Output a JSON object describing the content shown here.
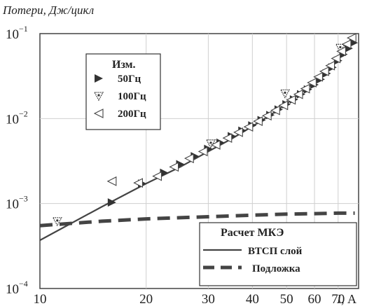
{
  "chart_data": {
    "type": "scatter",
    "title": "",
    "ylabel": "Потери, Дж/цикл",
    "xlabel_italic": "I",
    "xlabel_unit": ", А",
    "xscale": "log",
    "yscale": "log",
    "xlim": [
      10,
      80
    ],
    "ylim": [
      0.0001,
      0.1
    ],
    "grid": true,
    "x_ticks": [
      {
        "value": 10,
        "label": "10"
      },
      {
        "value": 20,
        "label": "20"
      },
      {
        "value": 30,
        "label": "30"
      },
      {
        "value": 40,
        "label": "40"
      },
      {
        "value": 50,
        "label": "50"
      },
      {
        "value": 60,
        "label": "60"
      },
      {
        "value": 70,
        "label": "70"
      }
    ],
    "y_ticks": [
      {
        "value": 0.0001,
        "base": "10",
        "exp": "−4"
      },
      {
        "value": 0.001,
        "base": "10",
        "exp": "−3"
      },
      {
        "value": 0.01,
        "base": "10",
        "exp": "−2"
      },
      {
        "value": 0.1,
        "base": "10",
        "exp": "−1"
      }
    ],
    "measured_legend": {
      "title": "Изм.",
      "placement": "upper-left"
    },
    "fem_legend": {
      "title": "Расчет МКЭ",
      "placement": "lower-right"
    },
    "series": [
      {
        "name": "50Гц",
        "marker": "triangle-right-filled",
        "points": [
          [
            16,
            0.00103
          ],
          [
            19.5,
            0.00172
          ],
          [
            22.5,
            0.0023
          ],
          [
            25,
            0.0029
          ],
          [
            27.5,
            0.0036
          ],
          [
            30,
            0.0044
          ],
          [
            32.5,
            0.0052
          ],
          [
            35,
            0.0062
          ],
          [
            37.5,
            0.0072
          ],
          [
            40,
            0.0083
          ],
          [
            42.5,
            0.0096
          ],
          [
            45,
            0.011
          ],
          [
            47.5,
            0.0128
          ],
          [
            50,
            0.0147
          ],
          [
            52.5,
            0.0168
          ],
          [
            55,
            0.0193
          ],
          [
            57.5,
            0.022
          ],
          [
            60,
            0.025
          ],
          [
            62.5,
            0.029
          ],
          [
            65,
            0.034
          ],
          [
            67.5,
            0.04
          ],
          [
            70,
            0.048
          ],
          [
            72.5,
            0.057
          ],
          [
            75,
            0.067
          ],
          [
            77.5,
            0.078
          ]
        ]
      },
      {
        "name": "100Гц",
        "marker": "triangle-down-dotted",
        "points": [
          [
            11.2,
            0.00062
          ],
          [
            30.5,
            0.0051
          ],
          [
            49.5,
            0.0198
          ],
          [
            71,
            0.068
          ]
        ]
      },
      {
        "name": "200Гц",
        "marker": "triangle-left-open",
        "points": [
          [
            16,
            0.00183
          ],
          [
            19,
            0.00175
          ],
          [
            21.5,
            0.0021
          ],
          [
            24,
            0.0027
          ],
          [
            26.5,
            0.0034
          ],
          [
            29,
            0.0041
          ],
          [
            31.5,
            0.0049
          ],
          [
            34,
            0.0059
          ],
          [
            36.5,
            0.0069
          ],
          [
            39,
            0.008
          ],
          [
            41.5,
            0.0093
          ],
          [
            44,
            0.0108
          ],
          [
            46.5,
            0.0125
          ],
          [
            49,
            0.0143
          ],
          [
            51.5,
            0.0166
          ],
          [
            54,
            0.0193
          ],
          [
            56.5,
            0.0225
          ],
          [
            59,
            0.0265
          ],
          [
            61.5,
            0.031
          ],
          [
            64,
            0.036
          ],
          [
            66.5,
            0.042
          ],
          [
            69,
            0.051
          ],
          [
            71.5,
            0.062
          ],
          [
            74,
            0.075
          ],
          [
            76.5,
            0.089
          ]
        ]
      },
      {
        "name": "ВТСП слой",
        "type": "line",
        "style": "solid",
        "points": [
          [
            10,
            0.00037
          ],
          [
            15,
            0.00092
          ],
          [
            20,
            0.00172
          ],
          [
            25,
            0.0027
          ],
          [
            30,
            0.0041
          ],
          [
            35,
            0.0058
          ],
          [
            40,
            0.0081
          ],
          [
            45,
            0.011
          ],
          [
            50,
            0.015
          ],
          [
            55,
            0.02
          ],
          [
            60,
            0.027
          ],
          [
            65,
            0.037
          ],
          [
            70,
            0.052
          ],
          [
            75,
            0.071
          ],
          [
            78,
            0.085
          ]
        ]
      },
      {
        "name": "Подложка",
        "type": "line",
        "style": "dashed",
        "points": [
          [
            10,
            0.00055
          ],
          [
            15,
            0.00062
          ],
          [
            20,
            0.00066
          ],
          [
            30,
            0.0007
          ],
          [
            40,
            0.00073
          ],
          [
            50,
            0.00075
          ],
          [
            60,
            0.00076
          ],
          [
            70,
            0.00077
          ],
          [
            78,
            0.00077
          ]
        ]
      }
    ]
  }
}
